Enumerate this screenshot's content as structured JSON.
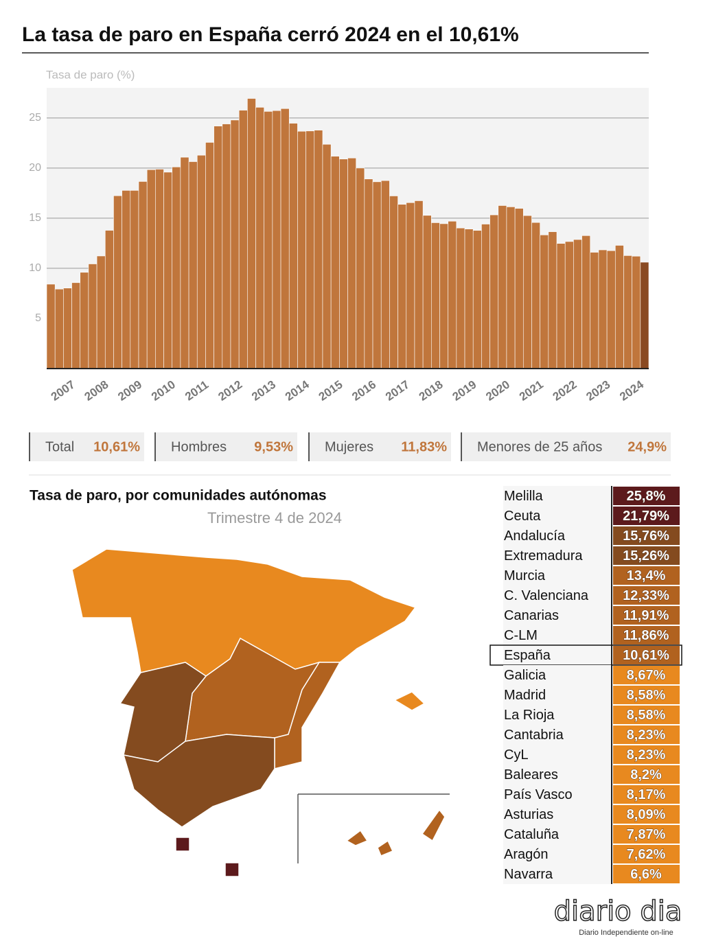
{
  "chart_data": {
    "type": "bar",
    "title": "La tasa de paro en España cerró 2024 en el 10,61%",
    "y_label": "Tasa de paro (%)",
    "categories": [
      "2007",
      null,
      null,
      null,
      "2008",
      null,
      null,
      null,
      "2009",
      null,
      null,
      null,
      "2010",
      null,
      null,
      null,
      "2011",
      null,
      null,
      null,
      "2012",
      null,
      null,
      null,
      "2013",
      null,
      null,
      null,
      "2014",
      null,
      null,
      null,
      "2015",
      null,
      null,
      null,
      "2016",
      null,
      null,
      null,
      "2017",
      null,
      null,
      null,
      "2018",
      null,
      null,
      null,
      "2019",
      null,
      null,
      null,
      "2020",
      null,
      null,
      null,
      "2021",
      null,
      null,
      null,
      "2022",
      null,
      null,
      null,
      "2023",
      null,
      null,
      null,
      "2024",
      null,
      null,
      null
    ],
    "values": [
      8.42,
      7.93,
      8.03,
      8.57,
      9.6,
      10.44,
      11.23,
      13.79,
      17.24,
      17.77,
      17.77,
      18.66,
      19.84,
      19.89,
      19.59,
      20.11,
      21.08,
      20.64,
      21.28,
      22.56,
      24.19,
      24.4,
      24.79,
      25.77,
      26.94,
      26.06,
      25.65,
      25.73,
      25.93,
      24.47,
      23.67,
      23.7,
      23.78,
      22.37,
      21.18,
      20.9,
      21.0,
      20.0,
      18.91,
      18.63,
      18.75,
      17.22,
      16.38,
      16.55,
      16.74,
      15.28,
      14.55,
      14.45,
      14.7,
      14.02,
      13.92,
      13.78,
      14.41,
      15.33,
      16.26,
      16.13,
      15.98,
      15.26,
      14.57,
      13.33,
      13.65,
      12.48,
      12.67,
      12.87,
      13.26,
      11.6,
      11.84,
      11.76,
      12.29,
      11.27,
      11.21,
      10.61
    ],
    "color": "#c0763c",
    "highlight_color": "#8a4a22",
    "ylim": [
      0,
      28
    ],
    "yticks": [
      5,
      10,
      15,
      20,
      25
    ],
    "grid": true
  },
  "stats": [
    {
      "label": "Total",
      "value": "10,61%"
    },
    {
      "label": "Hombres",
      "value": "9,53%"
    },
    {
      "label": "Mujeres",
      "value": "11,83%"
    },
    {
      "label": "Menores de 25 años",
      "value": "24,9%"
    }
  ],
  "map": {
    "title": "Tasa de paro, por comunidades autónomas",
    "subtitle": "Trimestre 4 de 2024"
  },
  "table": {
    "rows": [
      {
        "name": "Melilla",
        "value": "25,8%",
        "color": "#5c1a1c"
      },
      {
        "name": "Ceuta",
        "value": "21,79%",
        "color": "#5c1a1c"
      },
      {
        "name": "Andalucía",
        "value": "15,76%",
        "color": "#844b1f"
      },
      {
        "name": "Extremadura",
        "value": "15,26%",
        "color": "#844b1f"
      },
      {
        "name": "Murcia",
        "value": "13,4%",
        "color": "#b1621f"
      },
      {
        "name": "C. Valenciana",
        "value": "12,33%",
        "color": "#b1621f"
      },
      {
        "name": "Canarias",
        "value": "11,91%",
        "color": "#b1621f"
      },
      {
        "name": "C-LM",
        "value": "11,86%",
        "color": "#b1621f"
      },
      {
        "name": "España",
        "value": "10,61%",
        "color": "#b1621f"
      },
      {
        "name": "Galicia",
        "value": "8,67%",
        "color": "#e8891f"
      },
      {
        "name": "Madrid",
        "value": "8,58%",
        "color": "#e8891f"
      },
      {
        "name": "La Rioja",
        "value": "8,58%",
        "color": "#e8891f"
      },
      {
        "name": "Cantabria",
        "value": "8,23%",
        "color": "#e8891f"
      },
      {
        "name": "CyL",
        "value": "8,23%",
        "color": "#e8891f"
      },
      {
        "name": "Baleares",
        "value": "8,2%",
        "color": "#e8891f"
      },
      {
        "name": "País Vasco",
        "value": "8,17%",
        "color": "#e8891f"
      },
      {
        "name": "Asturias",
        "value": "8,09%",
        "color": "#e8891f"
      },
      {
        "name": "Cataluña",
        "value": "7,87%",
        "color": "#e8891f"
      },
      {
        "name": "Aragón",
        "value": "7,62%",
        "color": "#e8891f"
      },
      {
        "name": "Navarra",
        "value": "6,6%",
        "color": "#e8891f"
      }
    ]
  },
  "logo": {
    "name": "diario dia",
    "tagline": "Diario Independiente on-line"
  }
}
